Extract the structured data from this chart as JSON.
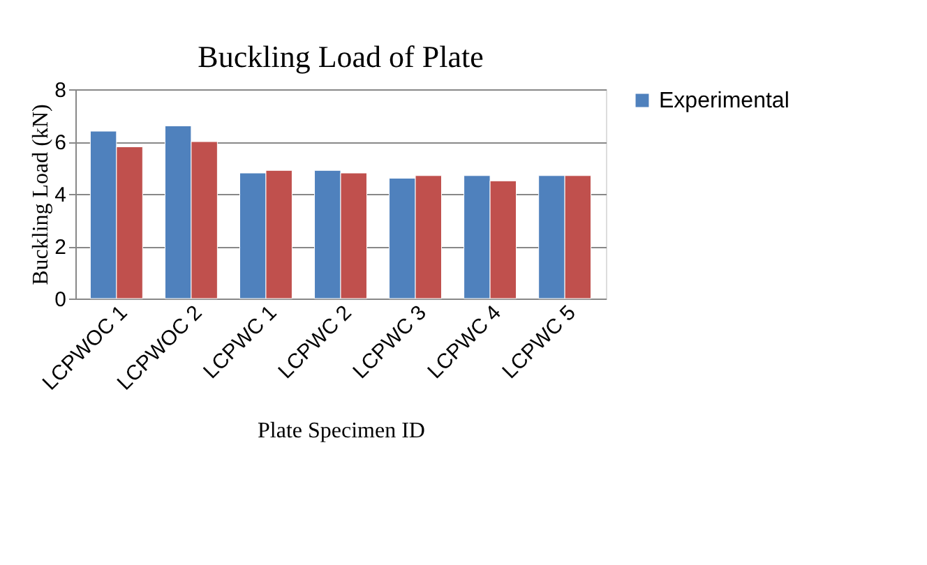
{
  "chart_data": {
    "type": "bar",
    "title": "Buckling Load of Plate",
    "xlabel": "Plate Specimen ID",
    "ylabel": "Buckling Load (kN)",
    "categories": [
      "LCPWOC 1",
      "LCPWOC 2",
      "LCPWC 1",
      "LCPWC 2",
      "LCPWC 3",
      "LCPWC 4",
      "LCPWC 5"
    ],
    "series": [
      {
        "name": "Experimental",
        "color": "#4f81bd",
        "values": [
          6.4,
          6.6,
          4.8,
          4.9,
          4.6,
          4.7,
          4.7
        ]
      },
      {
        "color": "#c0504d",
        "values": [
          5.8,
          6.0,
          4.9,
          4.8,
          4.7,
          4.5,
          4.7
        ]
      }
    ],
    "ylim": [
      0,
      8
    ],
    "yticks": [
      0,
      2,
      4,
      6,
      8
    ],
    "grid": "y",
    "legend": "right"
  }
}
